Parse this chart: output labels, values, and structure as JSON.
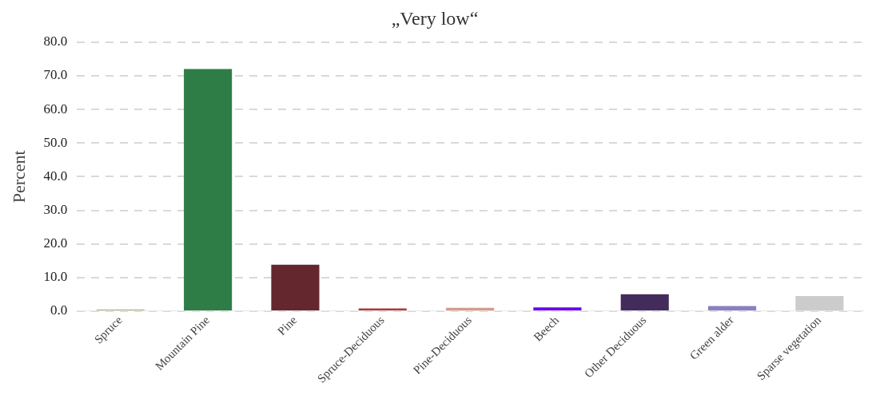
{
  "chart_data": {
    "type": "bar",
    "title": "„Very low“",
    "ylabel": "Percent",
    "categories": [
      "Spruce",
      "Mountain Pine",
      "Pine",
      "Spruce-Deciduous",
      "Pine-Deciduous",
      "Beech",
      "Other Deciduous",
      "Green alder",
      "Sparse vegetation"
    ],
    "values": [
      0.5,
      72.0,
      13.8,
      0.8,
      1.0,
      1.1,
      5.0,
      1.5,
      4.5
    ],
    "colors": [
      "#a8c080",
      "#2e7d46",
      "#65272e",
      "#b03a3a",
      "#d89a8a",
      "#6a00f0",
      "#432c5c",
      "#8a80c0",
      "#cccccc"
    ],
    "ylim": [
      0,
      80
    ],
    "yticks": [
      {
        "value": 0,
        "label": "0.0"
      },
      {
        "value": 10,
        "label": "10.0"
      },
      {
        "value": 20,
        "label": "20.0"
      },
      {
        "value": 30,
        "label": "30.0"
      },
      {
        "value": 40,
        "label": "40.0"
      },
      {
        "value": 50,
        "label": "50.0"
      },
      {
        "value": 60,
        "label": "60.0"
      },
      {
        "value": 70,
        "label": "70.0"
      },
      {
        "value": 80,
        "label": "80.0"
      }
    ],
    "grid": "y",
    "legend": false
  }
}
